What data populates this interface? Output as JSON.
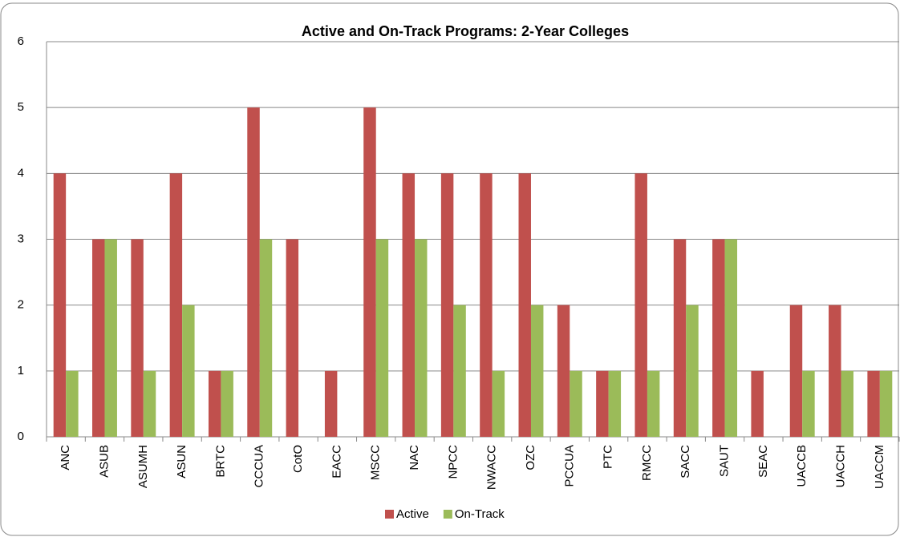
{
  "chart_data": {
    "type": "bar",
    "title": "Active and On-Track Programs: 2-Year Colleges",
    "categories": [
      "ANC",
      "ASUB",
      "ASUMH",
      "ASUN",
      "BRTC",
      "CCCUA",
      "CotO",
      "EACC",
      "MSCC",
      "NAC",
      "NPCC",
      "NWACC",
      "OZC",
      "PCCUA",
      "PTC",
      "RMCC",
      "SACC",
      "SAUT",
      "SEAC",
      "UACCB",
      "UACCH",
      "UACCM"
    ],
    "series": [
      {
        "name": "Active",
        "color": "#c0504d",
        "values": [
          4,
          3,
          3,
          4,
          1,
          5,
          3,
          1,
          5,
          4,
          4,
          4,
          4,
          2,
          1,
          4,
          3,
          3,
          1,
          2,
          2,
          1
        ]
      },
      {
        "name": "On-Track",
        "color": "#9bbb59",
        "values": [
          1,
          3,
          1,
          2,
          1,
          3,
          0,
          0,
          3,
          3,
          2,
          1,
          2,
          1,
          1,
          1,
          2,
          3,
          0,
          1,
          1,
          1
        ]
      }
    ],
    "ylim": [
      0,
      6
    ],
    "yticks": [
      0,
      1,
      2,
      3,
      4,
      5,
      6
    ],
    "grid": true,
    "legend": "bottom"
  }
}
